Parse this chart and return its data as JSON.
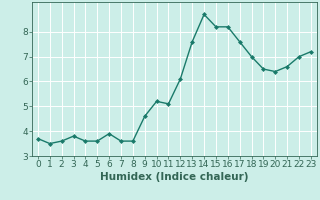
{
  "x": [
    0,
    1,
    2,
    3,
    4,
    5,
    6,
    7,
    8,
    9,
    10,
    11,
    12,
    13,
    14,
    15,
    16,
    17,
    18,
    19,
    20,
    21,
    22,
    23
  ],
  "y": [
    3.7,
    3.5,
    3.6,
    3.8,
    3.6,
    3.6,
    3.9,
    3.6,
    3.6,
    4.6,
    5.2,
    5.1,
    6.1,
    7.6,
    8.7,
    8.2,
    8.2,
    7.6,
    7.0,
    6.5,
    6.4,
    6.6,
    7.0,
    7.2
  ],
  "xlabel": "Humidex (Indice chaleur)",
  "ylim": [
    3,
    9
  ],
  "xlim_min": -0.5,
  "xlim_max": 23.5,
  "yticks": [
    3,
    4,
    5,
    6,
    7,
    8
  ],
  "xticks": [
    0,
    1,
    2,
    3,
    4,
    5,
    6,
    7,
    8,
    9,
    10,
    11,
    12,
    13,
    14,
    15,
    16,
    17,
    18,
    19,
    20,
    21,
    22,
    23
  ],
  "line_color": "#1a7a6a",
  "marker": "D",
  "marker_size": 2.0,
  "bg_color": "#cceee8",
  "grid_color": "#ffffff",
  "axis_color": "#336655",
  "xlabel_fontsize": 7.5,
  "tick_fontsize": 6.5,
  "line_width": 1.0
}
